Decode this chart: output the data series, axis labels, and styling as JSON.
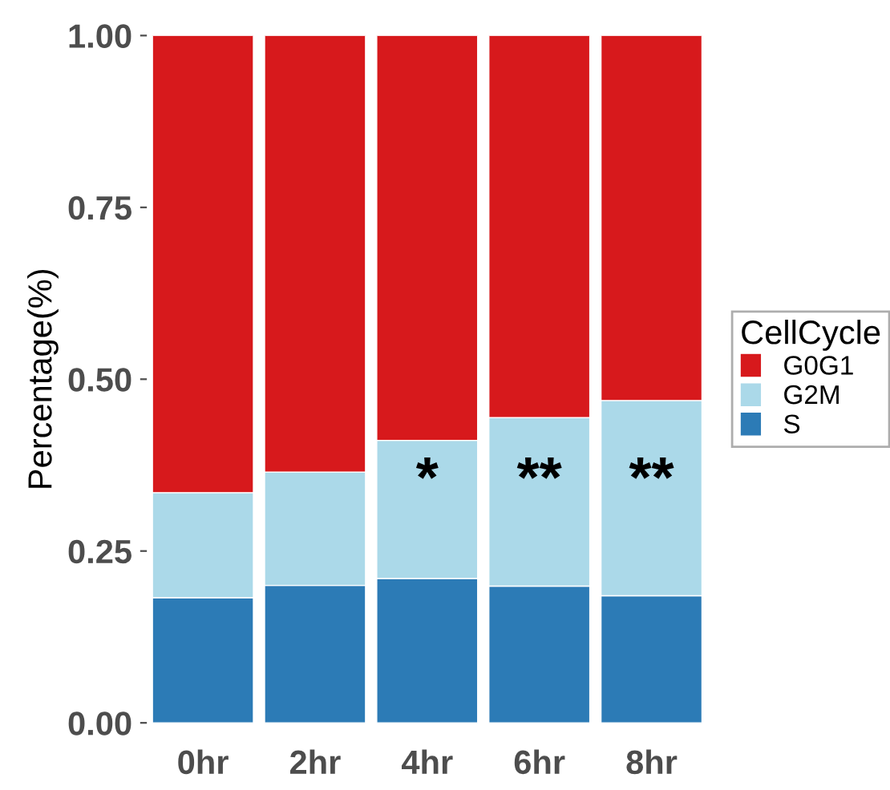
{
  "chart_data": {
    "type": "bar",
    "stacked": true,
    "ylabel": "Percentage(%)",
    "legend_title": "CellCycle",
    "legend": "right",
    "grid": false,
    "categories": [
      "0hr",
      "2hr",
      "4hr",
      "6hr",
      "8hr"
    ],
    "series": [
      {
        "name": "S",
        "color": "#2c7bb6",
        "values": [
          0.182,
          0.2,
          0.21,
          0.199,
          0.185
        ]
      },
      {
        "name": "G2M",
        "color": "#abd9e9",
        "values": [
          0.153,
          0.165,
          0.201,
          0.245,
          0.284
        ]
      },
      {
        "name": "G0G1",
        "color": "#d7191c",
        "values": [
          0.665,
          0.635,
          0.589,
          0.556,
          0.531
        ]
      }
    ],
    "ylim": [
      0,
      1
    ],
    "yticks": [
      {
        "value": 0,
        "label": "0.00"
      },
      {
        "value": 0.25,
        "label": "0.25"
      },
      {
        "value": 0.5,
        "label": "0.50"
      },
      {
        "value": 0.75,
        "label": "0.75"
      },
      {
        "value": 1,
        "label": "1.00"
      }
    ],
    "annotations": [
      "*",
      "**",
      "**"
    ]
  }
}
